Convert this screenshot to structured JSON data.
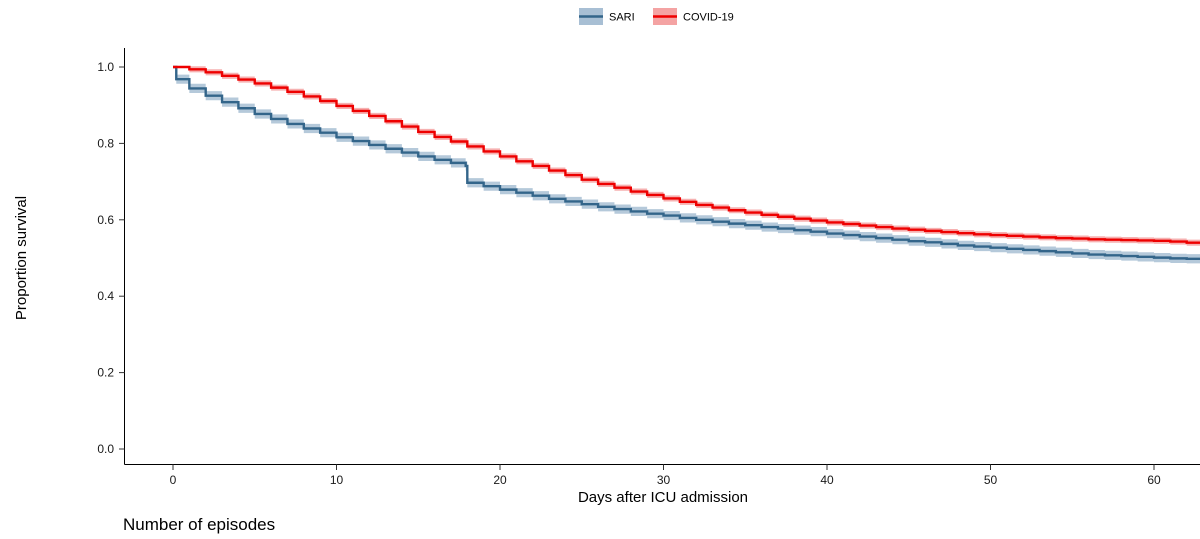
{
  "chart_data": {
    "type": "line",
    "subtype": "kaplan-meier survival curve with confidence bands",
    "xlabel": "Days after ICU admission",
    "ylabel": "Proportion survival",
    "xlim": [
      -3,
      63
    ],
    "ylim": [
      -0.03,
      1.05
    ],
    "xticks": [
      0,
      10,
      20,
      30,
      40,
      50,
      60
    ],
    "yticks": [
      0.0,
      0.2,
      0.4,
      0.6,
      0.8,
      1.0
    ],
    "xtick_labels": [
      "0",
      "10",
      "20",
      "30",
      "40",
      "50",
      "60"
    ],
    "ytick_labels": [
      "0.0",
      "0.2",
      "0.4",
      "0.6",
      "0.8",
      "1.0"
    ],
    "grid": false,
    "legend": {
      "position": "top-center",
      "items": [
        "SARI",
        "COVID-19"
      ]
    },
    "series": [
      {
        "name": "SARI",
        "color": "#33658a",
        "band_color": "#a8bfd4",
        "x": [
          0,
          0.2,
          1,
          2,
          3,
          4,
          5,
          6,
          7,
          8,
          9,
          10,
          11,
          12,
          13,
          14,
          15,
          16,
          17,
          17.9,
          18,
          19,
          20,
          21,
          22,
          23,
          24,
          25,
          26,
          27,
          28,
          29,
          30,
          31,
          32,
          33,
          34,
          35,
          36,
          37,
          38,
          39,
          40,
          41,
          42,
          43,
          44,
          45,
          46,
          47,
          48,
          49,
          50,
          51,
          52,
          53,
          54,
          55,
          56,
          57,
          58,
          59,
          60,
          61,
          62,
          63
        ],
        "y": [
          1.0,
          0.968,
          0.944,
          0.925,
          0.908,
          0.892,
          0.877,
          0.864,
          0.851,
          0.839,
          0.828,
          0.816,
          0.806,
          0.796,
          0.786,
          0.776,
          0.766,
          0.757,
          0.749,
          0.741,
          0.697,
          0.688,
          0.679,
          0.671,
          0.663,
          0.655,
          0.648,
          0.641,
          0.634,
          0.628,
          0.622,
          0.616,
          0.611,
          0.605,
          0.6,
          0.595,
          0.59,
          0.586,
          0.581,
          0.577,
          0.573,
          0.569,
          0.564,
          0.56,
          0.556,
          0.552,
          0.548,
          0.544,
          0.541,
          0.537,
          0.533,
          0.53,
          0.527,
          0.524,
          0.521,
          0.518,
          0.515,
          0.512,
          0.509,
          0.507,
          0.505,
          0.503,
          0.501,
          0.499,
          0.498,
          0.497
        ],
        "ci_halfwidth": 0.012
      },
      {
        "name": "COVID-19",
        "color": "#ee0000",
        "band_color": "#f4a3a3",
        "x": [
          0,
          1,
          2,
          3,
          4,
          5,
          6,
          7,
          8,
          9,
          10,
          11,
          12,
          13,
          14,
          15,
          16,
          17,
          18,
          19,
          20,
          21,
          22,
          23,
          24,
          25,
          26,
          27,
          28,
          29,
          30,
          31,
          32,
          33,
          34,
          35,
          36,
          37,
          38,
          39,
          40,
          41,
          42,
          43,
          44,
          45,
          46,
          47,
          48,
          49,
          50,
          51,
          52,
          53,
          54,
          55,
          56,
          57,
          58,
          59,
          60,
          61,
          62,
          63
        ],
        "y": [
          1.0,
          0.994,
          0.986,
          0.977,
          0.967,
          0.957,
          0.946,
          0.935,
          0.923,
          0.911,
          0.898,
          0.885,
          0.872,
          0.858,
          0.844,
          0.83,
          0.817,
          0.805,
          0.792,
          0.779,
          0.766,
          0.753,
          0.741,
          0.729,
          0.717,
          0.705,
          0.694,
          0.684,
          0.674,
          0.665,
          0.656,
          0.647,
          0.639,
          0.632,
          0.625,
          0.619,
          0.613,
          0.608,
          0.603,
          0.598,
          0.593,
          0.589,
          0.585,
          0.581,
          0.577,
          0.574,
          0.571,
          0.568,
          0.565,
          0.562,
          0.56,
          0.558,
          0.556,
          0.554,
          0.552,
          0.551,
          0.549,
          0.548,
          0.547,
          0.546,
          0.545,
          0.543,
          0.54,
          0.538
        ],
        "ci_halfwidth": 0.008
      }
    ]
  },
  "caption": "Number of episodes"
}
